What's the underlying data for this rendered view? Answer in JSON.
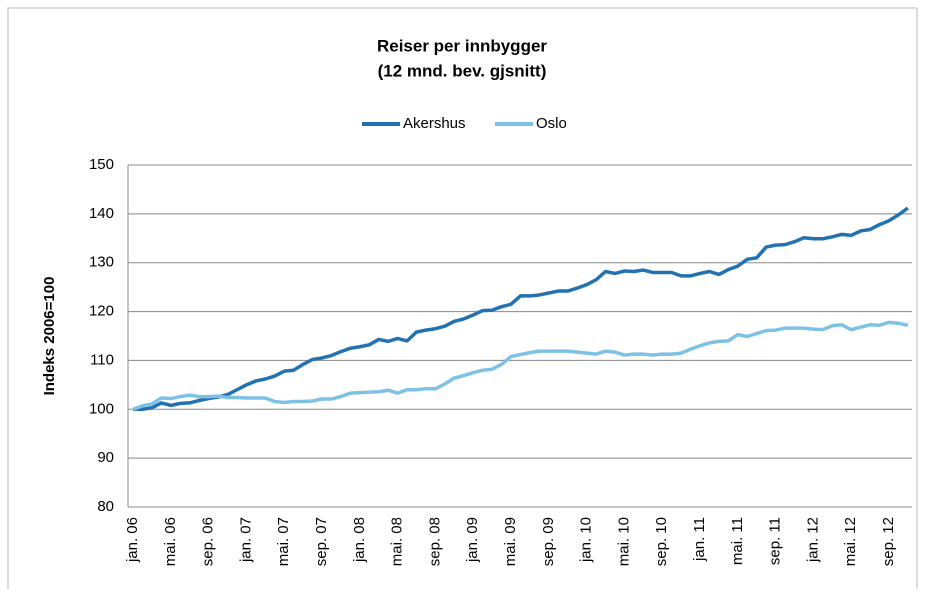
{
  "chart_data": {
    "type": "line",
    "title": "Reiser per innbygger",
    "subtitle": "(12 mnd. bev. gjsnitt)",
    "y_label": "Indeks 2006=100",
    "categories": [
      "jan. 06",
      null,
      null,
      null,
      "mai. 06",
      null,
      null,
      null,
      "sep. 06",
      null,
      null,
      null,
      "jan. 07",
      null,
      null,
      null,
      "mai. 07",
      null,
      null,
      null,
      "sep. 07",
      null,
      null,
      null,
      "jan. 08",
      null,
      null,
      null,
      "mai. 08",
      null,
      null,
      null,
      "sep. 08",
      null,
      null,
      null,
      "jan. 09",
      null,
      null,
      null,
      "mai. 09",
      null,
      null,
      null,
      "sep. 09",
      null,
      null,
      null,
      "jan. 10",
      null,
      null,
      null,
      "mai. 10",
      null,
      null,
      null,
      "sep. 10",
      null,
      null,
      null,
      "jan. 11",
      null,
      null,
      null,
      "mai. 11",
      null,
      null,
      null,
      "sep. 11",
      null,
      null,
      null,
      "jan. 12",
      null,
      null,
      null,
      "mai. 12",
      null,
      null,
      null,
      "sep. 12",
      null,
      null
    ],
    "series": [
      {
        "name": "Akershus",
        "color": "#2272b2",
        "values": [
          100,
          100,
          100.3,
          101.3,
          100.8,
          101.2,
          101.3,
          101.8,
          102.2,
          102.5,
          103,
          104,
          105,
          105.8,
          106.2,
          106.8,
          107.8,
          108,
          109.2,
          110.2,
          110.5,
          111,
          111.8,
          112.5,
          112.8,
          113.2,
          114.3,
          113.9,
          114.5,
          114,
          115.8,
          116.2,
          116.5,
          117,
          118,
          118.5,
          119.3,
          120.2,
          120.3,
          121,
          121.5,
          123.2,
          123.2,
          123.4,
          123.8,
          124.2,
          124.2,
          124.8,
          125.5,
          126.5,
          128.2,
          127.8,
          128.3,
          128.2,
          128.5,
          128,
          128,
          128,
          127.3,
          127.3,
          127.8,
          128.2,
          127.6,
          128.6,
          129.3,
          130.7,
          131,
          133.2,
          133.6,
          133.7,
          134.3,
          135.1,
          134.9,
          134.9,
          135.3,
          135.8,
          135.6,
          136.5,
          136.8,
          137.8,
          138.6,
          139.8,
          141.2
        ]
      },
      {
        "name": "Oslo",
        "color": "#7dc2e6",
        "values": [
          100,
          100.7,
          101.1,
          102.3,
          102.2,
          102.6,
          102.9,
          102.6,
          102.6,
          102.7,
          102.4,
          102.4,
          102.3,
          102.3,
          102.3,
          101.6,
          101.4,
          101.6,
          101.6,
          101.7,
          102.1,
          102.1,
          102.6,
          103.3,
          103.4,
          103.5,
          103.6,
          103.9,
          103.3,
          104,
          104,
          104.2,
          104.2,
          105.2,
          106.4,
          106.9,
          107.5,
          108,
          108.2,
          109.2,
          110.8,
          111.2,
          111.6,
          111.9,
          111.9,
          111.9,
          111.9,
          111.7,
          111.5,
          111.3,
          111.9,
          111.7,
          111.1,
          111.3,
          111.3,
          111.1,
          111.3,
          111.3,
          111.5,
          112.3,
          113,
          113.6,
          113.9,
          114,
          115.3,
          114.9,
          115.5,
          116.1,
          116.2,
          116.6,
          116.6,
          116.6,
          116.4,
          116.3,
          117.1,
          117.3,
          116.3,
          116.8,
          117.3,
          117.2,
          117.8,
          117.6,
          117.2
        ]
      }
    ],
    "ylim": [
      80,
      150
    ],
    "yticks": [
      80,
      90,
      100,
      110,
      120,
      130,
      140,
      150
    ],
    "grid": true,
    "legend": "top"
  }
}
